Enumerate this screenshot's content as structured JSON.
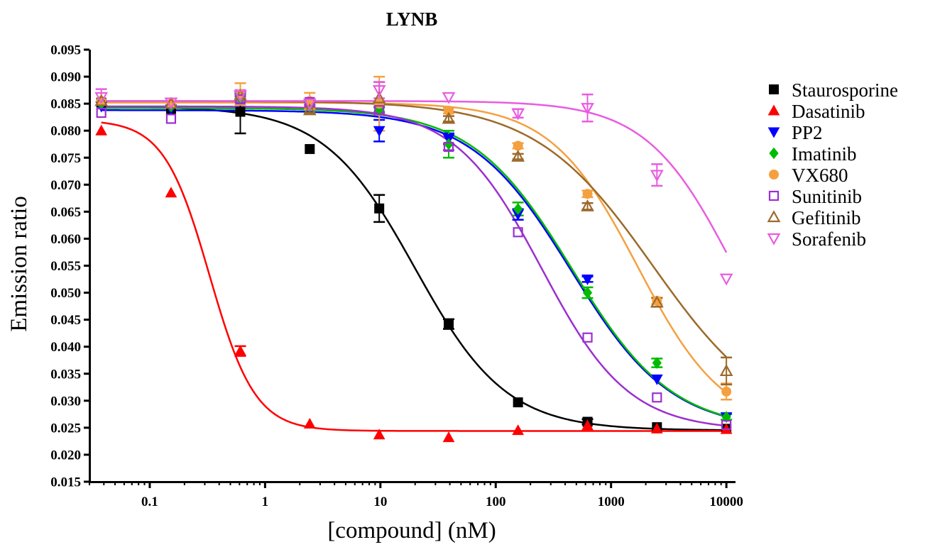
{
  "chart_data": {
    "type": "scatter",
    "title": "LYNB",
    "xlabel": "[compound] (nM)",
    "ylabel": "Emission ratio",
    "x_scale": "log",
    "xlim": [
      0.03,
      12000
    ],
    "ylim": [
      0.015,
      0.095
    ],
    "x_ticks": [
      0.1,
      1,
      10,
      100,
      1000,
      10000
    ],
    "x_tick_labels": [
      "0.1",
      "1",
      "10",
      "100",
      "1000",
      "10000"
    ],
    "y_ticks": [
      0.015,
      0.02,
      0.025,
      0.03,
      0.035,
      0.04,
      0.045,
      0.05,
      0.055,
      0.06,
      0.065,
      0.07,
      0.075,
      0.08,
      0.085,
      0.09,
      0.095
    ],
    "y_tick_labels": [
      "0.015",
      "0.020",
      "0.025",
      "0.030",
      "0.035",
      "0.040",
      "0.045",
      "0.050",
      "0.055",
      "0.060",
      "0.065",
      "0.070",
      "0.075",
      "0.080",
      "0.085",
      "0.090",
      "0.095"
    ],
    "grid": false,
    "legend_position": "right",
    "x": [
      0.038,
      0.153,
      0.61,
      2.44,
      9.77,
      39.1,
      156,
      625,
      2500,
      10000
    ],
    "series": [
      {
        "name": "Staurosporine",
        "color": "#000000",
        "marker": "filled-square",
        "values": [
          0.0852,
          0.0838,
          0.0835,
          0.0766,
          0.0656,
          0.0442,
          0.0297,
          0.0261,
          0.0251,
          0.0248
        ],
        "error": [
          0.0004,
          0.0004,
          0.004,
          0.0003,
          0.0025,
          0.0009,
          0.0003,
          0.0005,
          0.0004,
          0.0003
        ],
        "fit": {
          "top": 0.0845,
          "bottom": 0.0245,
          "ec50": 20,
          "hill": 1.1
        }
      },
      {
        "name": "Dasatinib",
        "color": "#ff0000",
        "marker": "filled-triangle-up",
        "values": [
          0.08,
          0.0685,
          0.0392,
          0.0257,
          0.0237,
          0.0232,
          0.0245,
          0.0254,
          0.0248,
          0.0247
        ],
        "error": [
          0.0003,
          0.0003,
          0.0009,
          0.0003,
          0.0002,
          0.0002,
          0.0002,
          0.0003,
          0.0002,
          0.0002
        ],
        "fit": {
          "top": 0.082,
          "bottom": 0.0244,
          "ec50": 0.33,
          "hill": 2.2
        }
      },
      {
        "name": "PP2",
        "color": "#0000ff",
        "marker": "filled-triangle-down",
        "values": [
          0.0845,
          0.084,
          0.0862,
          0.085,
          0.08,
          0.0785,
          0.0645,
          0.0525,
          0.034,
          0.027
        ],
        "error": [
          0.0003,
          0.0003,
          0.0006,
          0.0005,
          0.002,
          0.001,
          0.001,
          0.0005,
          0.0004,
          0.0004
        ],
        "fit": {
          "top": 0.0838,
          "bottom": 0.0245,
          "ec50": 450,
          "hill": 1.0
        }
      },
      {
        "name": "Imatinib",
        "color": "#00bb00",
        "marker": "filled-diamond",
        "values": [
          0.085,
          0.0845,
          0.086,
          0.0848,
          0.084,
          0.0775,
          0.0655,
          0.05,
          0.037,
          0.027
        ],
        "error": [
          0.0003,
          0.0003,
          0.0006,
          0.0005,
          0.0005,
          0.0025,
          0.0012,
          0.001,
          0.0008,
          0.0005
        ],
        "fit": {
          "top": 0.0842,
          "bottom": 0.0245,
          "ec50": 460,
          "hill": 1.0
        }
      },
      {
        "name": "VX680",
        "color": "#f5a040",
        "marker": "filled-circle",
        "values": [
          0.0855,
          0.085,
          0.0868,
          0.0855,
          0.085,
          0.0837,
          0.0772,
          0.0683,
          0.0485,
          0.0317
        ],
        "error": [
          0.0003,
          0.0003,
          0.002,
          0.0015,
          0.005,
          0.0005,
          0.0005,
          0.0006,
          0.0006,
          0.0015
        ],
        "fit": {
          "top": 0.0852,
          "bottom": 0.0245,
          "ec50": 1700,
          "hill": 1.15
        }
      },
      {
        "name": "Sunitinib",
        "color": "#9b30d0",
        "marker": "open-square",
        "values": [
          0.0833,
          0.0822,
          0.0858,
          0.0853,
          0.0838,
          0.077,
          0.0612,
          0.0417,
          0.0306,
          0.0255
        ],
        "error": [
          0.0003,
          0.0003,
          0.0005,
          0.0005,
          0.0005,
          0.0006,
          0.0004,
          0.0003,
          0.0003,
          0.0003
        ],
        "fit": {
          "top": 0.0845,
          "bottom": 0.0245,
          "ec50": 250,
          "hill": 1.15
        }
      },
      {
        "name": "Gefitinib",
        "color": "#9b6a2a",
        "marker": "open-triangle-up",
        "values": [
          0.0855,
          0.085,
          0.0865,
          0.0838,
          0.086,
          0.0822,
          0.0752,
          0.066,
          0.0482,
          0.0355
        ],
        "error": [
          0.0003,
          0.0003,
          0.0006,
          0.0005,
          0.003,
          0.0005,
          0.0005,
          0.0006,
          0.0008,
          0.0025
        ],
        "fit": {
          "top": 0.0855,
          "bottom": 0.0245,
          "ec50": 2300,
          "hill": 0.85
        }
      },
      {
        "name": "Sorafenib",
        "color": "#e95ce0",
        "marker": "open-triangle-down",
        "values": [
          0.0862,
          0.0852,
          0.0865,
          0.085,
          0.0875,
          0.0862,
          0.0832,
          0.0842,
          0.0718,
          0.0526
        ],
        "error": [
          0.0015,
          0.0004,
          0.001,
          0.0005,
          0.0015,
          0.0004,
          0.0008,
          0.0025,
          0.002,
          0.0003
        ],
        "fit": {
          "top": 0.0855,
          "bottom": 0.0245,
          "ec50": 11500,
          "hill": 1.15
        }
      }
    ]
  }
}
